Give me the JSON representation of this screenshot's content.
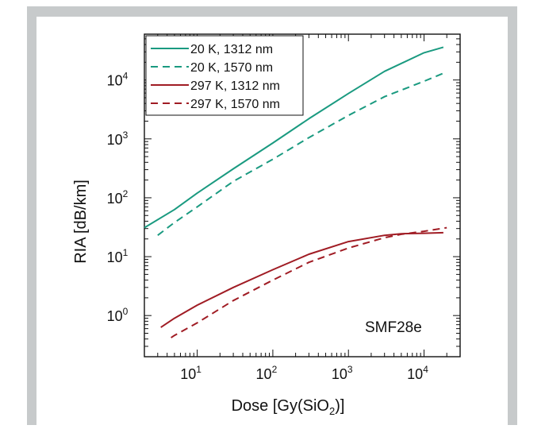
{
  "chart_data": {
    "type": "line",
    "scale": {
      "x": "log",
      "y": "log"
    },
    "xlim": [
      2,
      30000
    ],
    "ylim": [
      0.2,
      60000
    ],
    "xlabel": "Dose [Gy(SiO",
    "xlabel_sub": "2",
    "xlabel_tail": ")]",
    "ylabel": "RIA [dB/km]",
    "x_ticks": [
      {
        "base": "10",
        "exp": "1",
        "value": 10
      },
      {
        "base": "10",
        "exp": "2",
        "value": 100
      },
      {
        "base": "10",
        "exp": "3",
        "value": 1000
      },
      {
        "base": "10",
        "exp": "4",
        "value": 10000
      }
    ],
    "y_ticks": [
      {
        "base": "10",
        "exp": "0",
        "value": 1
      },
      {
        "base": "10",
        "exp": "1",
        "value": 10
      },
      {
        "base": "10",
        "exp": "2",
        "value": 100
      },
      {
        "base": "10",
        "exp": "3",
        "value": 1000
      },
      {
        "base": "10",
        "exp": "4",
        "value": 10000
      }
    ],
    "annotation": "SMF28e",
    "legend_position": "top-left",
    "series": [
      {
        "name": "20 K, 1312 nm",
        "color": "#1a9a80",
        "dash": "solid",
        "x": [
          2,
          5,
          10,
          30,
          100,
          300,
          1000,
          3000,
          10000,
          18000
        ],
        "y": [
          31,
          63,
          120,
          310,
          850,
          2200,
          5900,
          14000,
          29000,
          36000
        ]
      },
      {
        "name": "20 K, 1570 nm",
        "color": "#1a9a80",
        "dash": "dashed",
        "x": [
          3,
          5,
          10,
          30,
          100,
          300,
          1000,
          3000,
          10000,
          18000
        ],
        "y": [
          23,
          38,
          70,
          190,
          450,
          1050,
          2500,
          5200,
          9500,
          13000
        ]
      },
      {
        "name": "297 K, 1312 nm",
        "color": "#a01c24",
        "dash": "solid",
        "x": [
          3.3,
          5,
          10,
          30,
          100,
          300,
          1000,
          3000,
          5000,
          10000,
          18000
        ],
        "y": [
          0.63,
          0.9,
          1.5,
          3.0,
          6.0,
          11.0,
          18.0,
          23.0,
          24.5,
          25.0,
          25.5
        ]
      },
      {
        "name": "297 K, 1570 nm",
        "color": "#a01c24",
        "dash": "dashed",
        "x": [
          4.5,
          5,
          10,
          30,
          100,
          300,
          1000,
          3000,
          5000,
          10000,
          20000
        ],
        "y": [
          0.42,
          0.46,
          0.75,
          1.8,
          4.0,
          8.0,
          14.0,
          21.0,
          24.0,
          27.0,
          31.0
        ]
      }
    ]
  }
}
